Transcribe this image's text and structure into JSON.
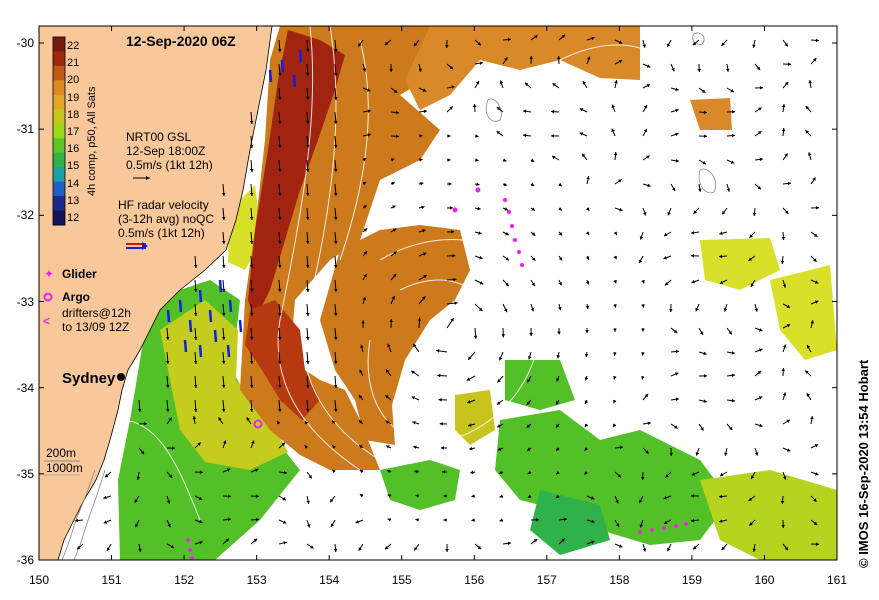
{
  "title": "12-Sep-2020 06Z",
  "credit": "© IMOS 16-Sep-2020 13:54 Hobart",
  "colorbar": {
    "title": "4h comp, p50, All Sats",
    "labels": [
      "22",
      "21",
      "20",
      "19",
      "18",
      "17",
      "16",
      "15",
      "14",
      "13",
      "12"
    ],
    "colors": [
      "#7a1a0e",
      "#a0280f",
      "#c25a14",
      "#d98a22",
      "#e3a62a",
      "#c8c41e",
      "#9ad91a",
      "#5cc52a",
      "#2fb24a",
      "#1ca0a8",
      "#1c60c8",
      "#1a2a8a",
      "#14145a"
    ]
  },
  "gsl": {
    "line1": "NRT00 GSL",
    "line2": "12-Sep 18:00Z",
    "line3": "0.5m/s (1kt 12h)"
  },
  "hf": {
    "line1": "HF radar velocity",
    "line2": "(3-12h avg) noQC",
    "line3": "0.5m/s (1kt 12h)"
  },
  "legend": {
    "glider": "Glider",
    "argo": "Argo",
    "drifters1": "drifters@12h",
    "drifters2": "to 13/09 12Z"
  },
  "place": "Sydney",
  "bathy": {
    "label1": "200m",
    "label2": "1000m"
  },
  "axes": {
    "yticks": [
      "-30",
      "-31",
      "-32",
      "-33",
      "-34",
      "-35",
      "-36"
    ],
    "xticks": [
      "150",
      "151",
      "152",
      "153",
      "154",
      "155",
      "156",
      "157",
      "158",
      "159",
      "160",
      "161"
    ]
  },
  "colors": {
    "land": "#f9c89a",
    "frame": "#000000",
    "warm_core": "#a02410",
    "warm": "#cc7a1c",
    "yellow": "#d8e02a",
    "green": "#52c026",
    "drifter": "#ee22ee",
    "hf_vec": "#1020e0"
  }
}
